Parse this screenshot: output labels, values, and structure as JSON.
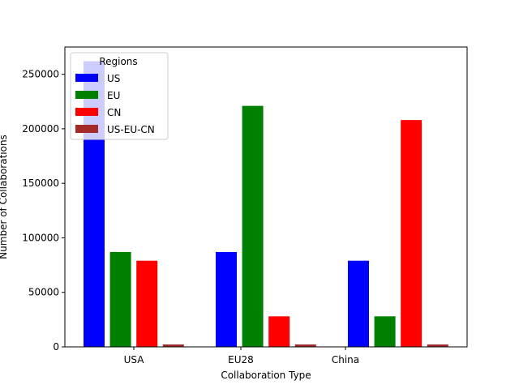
{
  "chart_data": {
    "type": "bar",
    "title": "",
    "xlabel": "Collaboration Type",
    "ylabel": "Number of Collaborations",
    "categories": [
      "USA",
      "EU28",
      "China"
    ],
    "ylim": [
      0,
      275000
    ],
    "yticks": [
      0,
      50000,
      100000,
      150000,
      200000,
      250000
    ],
    "ytick_labels": [
      "0",
      "50000",
      "100000",
      "150000",
      "200000",
      "250000"
    ],
    "grid": false,
    "legend": {
      "title": "Regions",
      "placement": "top-left"
    },
    "series": [
      {
        "name": "US",
        "color": "#0000ff",
        "values": [
          262000,
          87000,
          79000
        ]
      },
      {
        "name": "EU",
        "color": "#008000",
        "values": [
          87000,
          221000,
          28000
        ]
      },
      {
        "name": "CN",
        "color": "#ff0000",
        "values": [
          79000,
          28000,
          208000
        ]
      },
      {
        "name": "US-EU-CN",
        "color": "#a52a2a",
        "values": [
          2200,
          2200,
          2200
        ]
      }
    ]
  }
}
